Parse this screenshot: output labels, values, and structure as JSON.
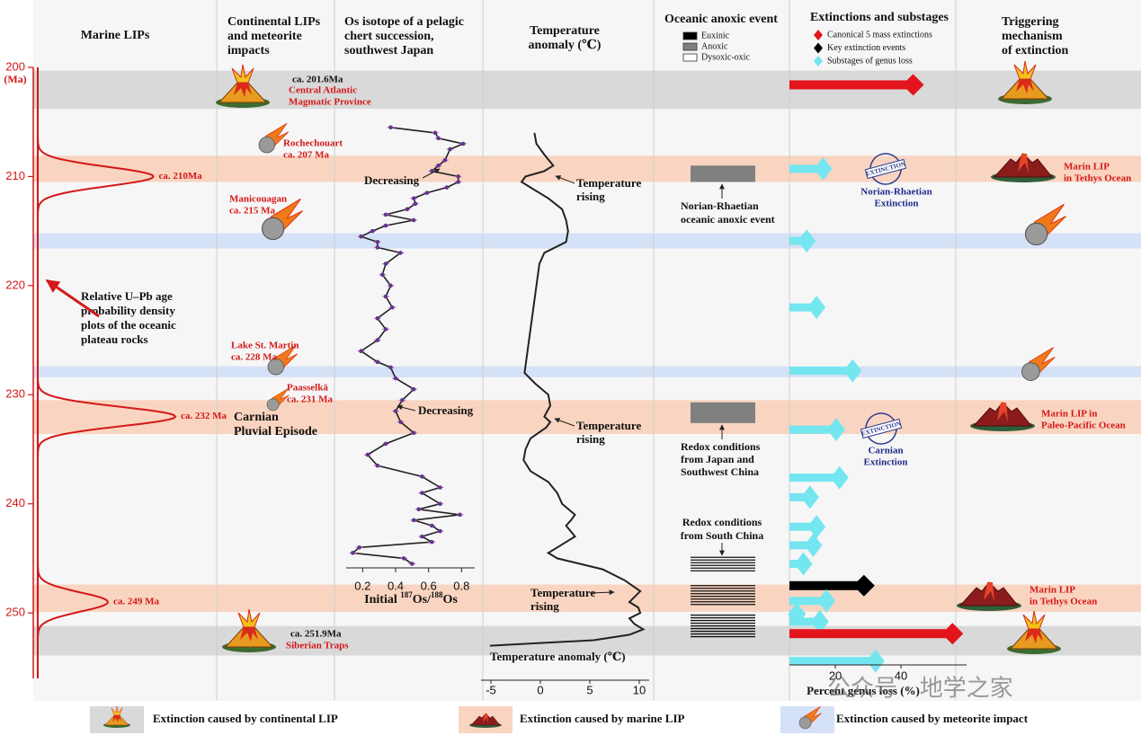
{
  "header": {
    "columns": [
      {
        "lines": [
          "Marine LIPs"
        ]
      },
      {
        "lines": [
          "Continental LIPs",
          "and meteorite",
          "impacts"
        ]
      },
      {
        "lines": [
          "Os isotope of a pelagic",
          "chert succession,",
          "southwest Japan"
        ]
      },
      {
        "lines": [
          "Temperature",
          "anomaly (℃)"
        ]
      },
      {
        "lines": [
          "Oceanic anoxic event"
        ]
      },
      {
        "lines": [
          "Extinctions  and  substages"
        ]
      },
      {
        "lines": [
          "Triggering",
          "mechanism",
          "of extinction"
        ]
      }
    ]
  },
  "age_axis": {
    "label": "(Ma)",
    "ylim": [
      200,
      256
    ],
    "yticks": [
      200,
      210,
      220,
      230,
      240,
      250
    ]
  },
  "bands": [
    {
      "start": 200.3,
      "end": 203.8,
      "color": "#d9d9d9"
    },
    {
      "start": 208.1,
      "end": 210.5,
      "color": "#f9d4c0"
    },
    {
      "start": 215.2,
      "end": 216.6,
      "color": "#d5e1f6"
    },
    {
      "start": 227.4,
      "end": 228.4,
      "color": "#d5e1f6"
    },
    {
      "start": 230.5,
      "end": 233.6,
      "color": "#f9d4c0"
    },
    {
      "start": 247.4,
      "end": 249.9,
      "color": "#f9d4c0"
    },
    {
      "start": 251.2,
      "end": 253.9,
      "color": "#d9d9d9"
    }
  ],
  "marine_lips": {
    "peaks": [
      {
        "age": 210,
        "height": 0.84,
        "label": "ca. 210Ma"
      },
      {
        "age": 232,
        "height": 1,
        "label": "ca. 232 Ma"
      },
      {
        "age": 249,
        "height": 0.51,
        "label": "ca. 249 Ma"
      }
    ],
    "note": {
      "lines": [
        "Relative U–Pb age",
        "probability density",
        "plots of the oceanic",
        "plateau rocks"
      ]
    }
  },
  "continental": {
    "annotations": [
      {
        "lines": [
          "ca. 201.6Ma"
        ]
      },
      {
        "lines": [
          "Central Atlantic",
          "Magmatic Province"
        ]
      },
      {
        "lines": [
          "Rochechouart",
          "ca. 207 Ma"
        ]
      },
      {
        "lines": [
          "Manicouagan",
          "ca. 215 Ma"
        ]
      },
      {
        "lines": [
          "Lake St. Martin",
          "ca. 228 Ma"
        ]
      },
      {
        "lines": [
          "Paasselkä",
          "ca. 231 Ma"
        ]
      },
      {
        "lines": [
          "Carnian",
          "Pluvial Episode"
        ]
      },
      {
        "lines": [
          "ca. 251.9Ma"
        ]
      },
      {
        "lines": [
          "Siberian Traps"
        ]
      }
    ]
  },
  "os_isotope": {
    "ages": [
      205.5,
      206,
      206.5,
      207,
      207.5,
      208.5,
      209,
      209.5,
      210,
      210.5,
      211,
      211.5,
      212,
      212.5,
      213,
      213.5,
      214,
      214.5,
      215,
      215.5,
      216,
      216.5,
      217,
      218,
      219,
      220,
      221,
      222,
      223,
      224,
      225,
      226,
      227,
      227.5,
      228.5,
      229.5,
      230.5,
      231.5,
      232.5,
      233.5,
      234.5,
      235.5,
      236.5,
      237.5,
      238.5,
      239,
      240,
      240.5,
      241,
      241.5,
      242,
      242.5,
      243,
      243.5,
      244,
      244.5,
      245,
      245.5
    ],
    "values": [
      0.37,
      0.64,
      0.66,
      0.81,
      0.73,
      0.7,
      0.66,
      0.62,
      0.78,
      0.78,
      0.71,
      0.59,
      0.51,
      0.52,
      0.47,
      0.34,
      0.51,
      0.34,
      0.26,
      0.19,
      0.29,
      0.29,
      0.43,
      0.34,
      0.32,
      0.37,
      0.34,
      0.38,
      0.29,
      0.34,
      0.29,
      0.19,
      0.29,
      0.37,
      0.4,
      0.51,
      0.44,
      0.4,
      0.43,
      0.51,
      0.34,
      0.23,
      0.29,
      0.56,
      0.67,
      0.56,
      0.67,
      0.54,
      0.79,
      0.51,
      0.62,
      0.67,
      0.56,
      0.62,
      0.18,
      0.14,
      0.45,
      0.5
    ],
    "xlim": [
      0.1,
      0.88
    ],
    "xticks": [
      0.2,
      0.4,
      0.6,
      0.8
    ],
    "label": [
      "Initial ",
      "187",
      "Os/",
      "188",
      "Os"
    ],
    "annotations": [
      "Decreasing",
      "Decreasing"
    ]
  },
  "temperature": {
    "ages": [
      206,
      207,
      208,
      209,
      209.5,
      210,
      210.5,
      211,
      212,
      213,
      214,
      215,
      216,
      217,
      218,
      220,
      222,
      224,
      226,
      228,
      229,
      230,
      231,
      232,
      232.5,
      233,
      234,
      235,
      236,
      237,
      238,
      239,
      240,
      241,
      241.5,
      242,
      243,
      244,
      244.5,
      245,
      245.5,
      246,
      247,
      248,
      249,
      249.5,
      250,
      250.5,
      251,
      251.5,
      252,
      252.5,
      253
    ],
    "values": [
      -0.6,
      -0.4,
      0.4,
      1.3,
      0.4,
      -1.5,
      -1.9,
      -1.0,
      0.8,
      2.2,
      2.6,
      2.8,
      2.6,
      0.4,
      -0.1,
      -0.4,
      -0.7,
      -1.0,
      -1.3,
      -1.6,
      -0.5,
      0.8,
      1.0,
      0.4,
      1.0,
      0.6,
      -1.0,
      -1.5,
      -1.7,
      -1.0,
      0.8,
      1.7,
      2.2,
      3.5,
      3.1,
      2.6,
      3.5,
      1.7,
      0.8,
      1.7,
      4.0,
      6.3,
      8.5,
      10.1,
      9.0,
      9.9,
      10.1,
      9.0,
      9.5,
      10.4,
      9.0,
      5.4,
      -5.1
    ],
    "xlim": [
      -6,
      11
    ],
    "xticks": [
      -5,
      0,
      5,
      10
    ],
    "label": "Temperature anomaly (℃)",
    "annotations": [
      {
        "lines": [
          "Temperature",
          "rising"
        ]
      },
      {
        "lines": [
          "Temperature",
          "rising"
        ]
      },
      {
        "lines": [
          "Temperature",
          "rising"
        ]
      }
    ]
  },
  "oae": {
    "legend": [
      {
        "label": "Euxinic",
        "color": "#000000"
      },
      {
        "label": "Anoxic",
        "color": "#808080"
      },
      {
        "label": "Dysoxic-oxic",
        "color": "#ffffff"
      }
    ],
    "events": [
      {
        "start": 209,
        "end": 210.5,
        "color": "#808080"
      },
      {
        "start": 230.7,
        "end": 232.6,
        "color": "#808080"
      }
    ],
    "redox_bands": [
      {
        "start": 244.9,
        "end": 246.3
      },
      {
        "start": 247.5,
        "end": 249.4
      },
      {
        "start": 250.2,
        "end": 252.2
      }
    ],
    "notes": [
      {
        "lines": [
          "Norian-Rhaetian",
          "oceanic anoxic event"
        ]
      },
      {
        "lines": [
          "Redox conditions",
          "from Japan and",
          "Southwest China"
        ]
      },
      {
        "lines": [
          "Redox conditions",
          "from South China"
        ]
      }
    ]
  },
  "extinctions": {
    "legend": [
      {
        "label": "Canonical 5 mass extinctions",
        "color": "#e3141c"
      },
      {
        "label": "Key extinction events",
        "color": "#000000"
      },
      {
        "label": "Substages of genus loss",
        "color": "#74e6f0"
      }
    ],
    "ages": [
      201.6,
      209.3,
      215.9,
      222,
      227.8,
      233.2,
      237.6,
      239.4,
      242.1,
      243.8,
      245.5,
      247.5,
      248.9,
      250.1,
      250.8,
      251.9,
      254.4
    ],
    "values": [
      47,
      19,
      14,
      17,
      28,
      23,
      24,
      15,
      17,
      16,
      13,
      32,
      20,
      11,
      18,
      59,
      35
    ],
    "colors": [
      "#e3141c",
      "#74e6f0",
      "#74e6f0",
      "#74e6f0",
      "#74e6f0",
      "#74e6f0",
      "#74e6f0",
      "#74e6f0",
      "#74e6f0",
      "#74e6f0",
      "#74e6f0",
      "#000000",
      "#74e6f0",
      "#74e6f0",
      "#74e6f0",
      "#e3141c",
      "#74e6f0"
    ],
    "xlim": [
      6,
      60
    ],
    "xticks": [
      20,
      40
    ],
    "label": "Percent genus loss (%)",
    "stamps": [
      "EXTINCTION",
      "EXTINCTION"
    ],
    "notes": [
      {
        "lines": [
          "Norian-Rhaetian",
          "Extinction"
        ]
      },
      {
        "lines": [
          "Carnian",
          "Extinction"
        ]
      }
    ]
  },
  "trigger": {
    "notes": [
      {
        "lines": [
          "Marin LIP",
          "in Tethys Ocean"
        ]
      },
      {
        "lines": [
          "Marin LIP in",
          "Paleo-Pacific Ocean"
        ]
      },
      {
        "lines": [
          "Marin LIP",
          "in Tethys Ocean"
        ]
      }
    ]
  },
  "legend": [
    {
      "label": "Extinction caused by continental LIP",
      "color": "#d9d9d9"
    },
    {
      "label": "Extinction caused by marine LIP",
      "color": "#f9d4c0"
    },
    {
      "label": "Extinction caused by meteorite impact",
      "color": "#d5e1f6"
    }
  ],
  "watermark": "公众号 · 地学之家"
}
